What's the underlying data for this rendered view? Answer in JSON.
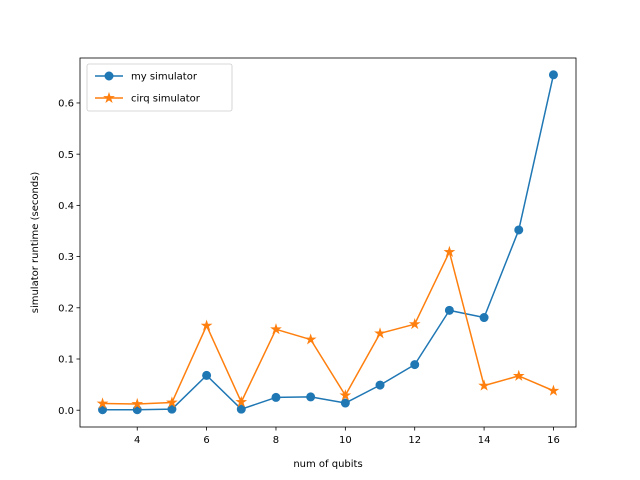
{
  "chart_data": {
    "type": "line",
    "title": "",
    "xlabel": "num of qubits",
    "ylabel": "simulator runtime (seconds)",
    "xlim": [
      2.35,
      16.65
    ],
    "ylim": [
      -0.0328,
      0.6878
    ],
    "x_ticks": [
      4,
      6,
      8,
      10,
      12,
      14,
      16
    ],
    "x_tick_labels": [
      "4",
      "6",
      "8",
      "10",
      "12",
      "14",
      "16"
    ],
    "y_ticks": [
      0.0,
      0.1,
      0.2,
      0.3,
      0.4,
      0.5,
      0.6
    ],
    "y_tick_labels": [
      "0.0",
      "0.1",
      "0.2",
      "0.3",
      "0.4",
      "0.5",
      "0.6"
    ],
    "grid": false,
    "legend_position": "top-left",
    "x": [
      3,
      4,
      5,
      6,
      7,
      8,
      9,
      10,
      11,
      12,
      13,
      14,
      15,
      16
    ],
    "series": [
      {
        "name": "my simulator",
        "color": "#1f77b4",
        "marker": "circle",
        "values": [
          0.001,
          0.001,
          0.002,
          0.068,
          0.002,
          0.025,
          0.026,
          0.014,
          0.049,
          0.089,
          0.195,
          0.181,
          0.352,
          0.655
        ]
      },
      {
        "name": "cirq simulator",
        "color": "#ff7f0e",
        "marker": "star",
        "values": [
          0.013,
          0.012,
          0.015,
          0.165,
          0.016,
          0.158,
          0.138,
          0.029,
          0.15,
          0.168,
          0.309,
          0.048,
          0.067,
          0.038
        ]
      }
    ]
  }
}
